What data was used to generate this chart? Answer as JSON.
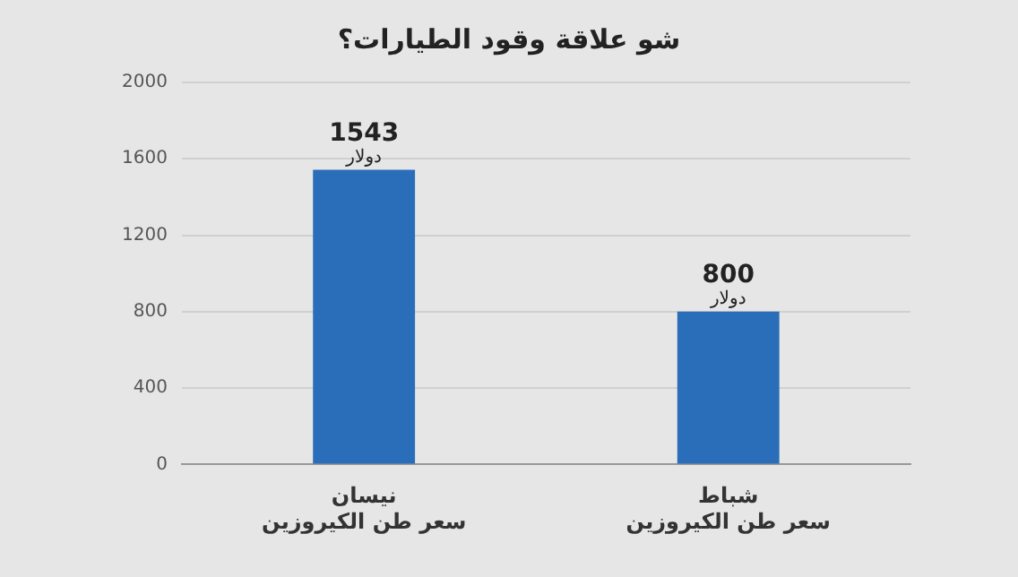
{
  "chart_data": {
    "type": "bar",
    "title": "شو علاقة وقود الطيارات؟",
    "categories": [
      "نيسان\nسعر طن الكيروزين",
      "شباط\nسعر طن الكيروزين"
    ],
    "values": [
      1543,
      800
    ],
    "color": "#2a6db8",
    "data_labels": true,
    "annotations": [
      "دولار",
      "دولار"
    ],
    "ylim": [
      0,
      2000
    ],
    "yticks": [
      0,
      400,
      800,
      1200,
      1600,
      2000
    ],
    "grid": "y"
  }
}
